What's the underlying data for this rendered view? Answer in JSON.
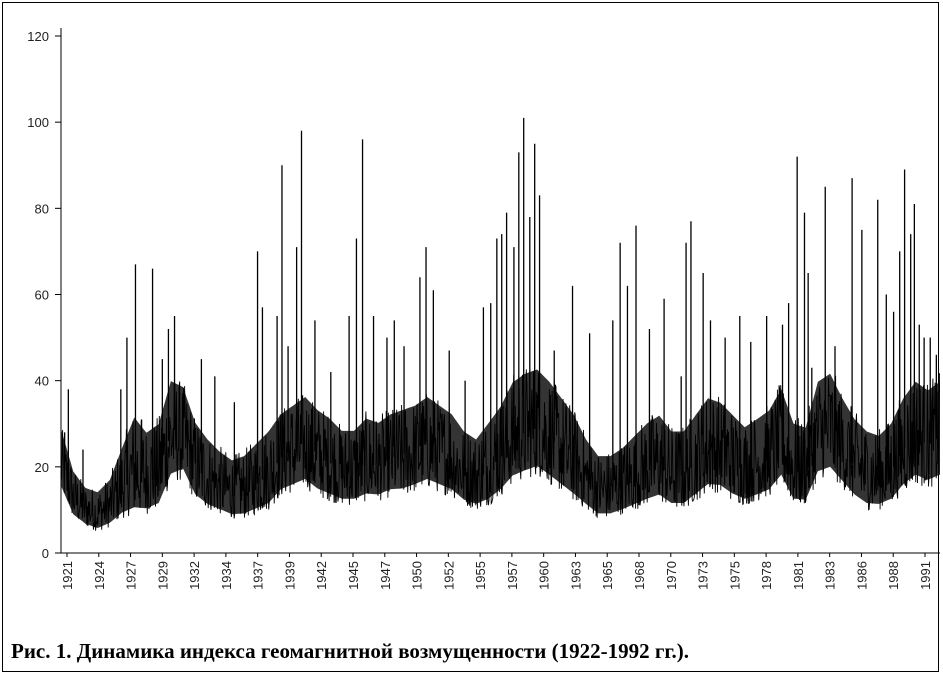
{
  "chart_data": {
    "type": "line",
    "title": "",
    "xlabel": "",
    "ylabel": "",
    "ylim": [
      0,
      120
    ],
    "yticks": [
      0,
      20,
      40,
      60,
      80,
      100,
      120
    ],
    "xlim": [
      1921,
      1993
    ],
    "xtick_labels": [
      "1921",
      "1924",
      "1927",
      "1929",
      "1932",
      "1934",
      "1937",
      "1939",
      "1942",
      "1945",
      "1947",
      "1950",
      "1952",
      "1955",
      "1957",
      "1960",
      "1963",
      "1965",
      "1968",
      "1970",
      "1973",
      "1975",
      "1978",
      "1981",
      "1983",
      "1986",
      "1988",
      "1991"
    ],
    "grid": false,
    "legend": "none",
    "series": [
      {
        "color": "#000000",
        "baseline": {
          "x": [
            1921,
            1922,
            1923,
            1924,
            1925,
            1926,
            1927,
            1928,
            1929,
            1930,
            1931,
            1932,
            1933,
            1934,
            1935,
            1936,
            1937,
            1938,
            1939,
            1940,
            1941,
            1942,
            1943,
            1944,
            1945,
            1946,
            1947,
            1948,
            1949,
            1950,
            1951,
            1952,
            1953,
            1954,
            1955,
            1956,
            1957,
            1958,
            1959,
            1960,
            1961,
            1962,
            1963,
            1964,
            1965,
            1966,
            1967,
            1968,
            1969,
            1970,
            1971,
            1972,
            1973,
            1974,
            1975,
            1976,
            1977,
            1978,
            1979,
            1980,
            1981,
            1982,
            1983,
            1984,
            1985,
            1986,
            1987,
            1988,
            1989,
            1990,
            1991,
            1992,
            1993
          ],
          "y": [
            22,
            13,
            10,
            9,
            11,
            15,
            17,
            16,
            18,
            28,
            30,
            20,
            17,
            15,
            13,
            14,
            16,
            18,
            22,
            24,
            26,
            23,
            21,
            19,
            19,
            21,
            20,
            22,
            23,
            24,
            26,
            24,
            22,
            18,
            17,
            19,
            22,
            26,
            28,
            29,
            27,
            24,
            21,
            17,
            14,
            14,
            15,
            17,
            19,
            20,
            18,
            18,
            21,
            24,
            23,
            21,
            19,
            20,
            22,
            27,
            19,
            18,
            27,
            28,
            24,
            20,
            18,
            17,
            19,
            24,
            27,
            25,
            27
          ],
          "low": [
            14,
            8,
            6,
            5,
            6,
            8,
            9,
            9,
            10,
            16,
            17,
            12,
            10,
            9,
            8,
            8,
            9,
            10,
            13,
            14,
            15,
            13,
            12,
            11,
            11,
            12,
            12,
            13,
            13,
            14,
            15,
            14,
            13,
            11,
            10,
            11,
            13,
            16,
            17,
            18,
            16,
            14,
            12,
            10,
            8,
            8,
            9,
            10,
            11,
            12,
            10,
            10,
            12,
            14,
            14,
            12,
            11,
            12,
            13,
            16,
            11,
            11,
            17,
            18,
            15,
            12,
            10,
            10,
            11,
            14,
            16,
            15,
            16
          ],
          "high": [
            30,
            20,
            16,
            15,
            18,
            26,
            34,
            30,
            32,
            42,
            40,
            32,
            28,
            25,
            23,
            24,
            27,
            30,
            34,
            36,
            38,
            35,
            33,
            30,
            30,
            33,
            32,
            34,
            35,
            36,
            38,
            36,
            34,
            30,
            28,
            32,
            36,
            42,
            44,
            45,
            42,
            38,
            34,
            28,
            24,
            24,
            26,
            29,
            32,
            34,
            30,
            30,
            34,
            38,
            37,
            34,
            31,
            33,
            35,
            40,
            32,
            31,
            42,
            44,
            38,
            33,
            30,
            29,
            32,
            38,
            42,
            40,
            42
          ]
        },
        "peaks": {
          "x": [
            1921.3,
            1921.6,
            1922.8,
            1925.9,
            1926.4,
            1927.1,
            1927.6,
            1928.5,
            1929.3,
            1929.8,
            1930.3,
            1931.6,
            1932.5,
            1933.6,
            1935.2,
            1937.1,
            1937.5,
            1938.7,
            1939.1,
            1939.6,
            1940.3,
            1940.7,
            1941.8,
            1943.1,
            1944.6,
            1945.2,
            1945.7,
            1946.6,
            1947.7,
            1948.3,
            1949.1,
            1950.4,
            1950.9,
            1951.5,
            1952.8,
            1954.1,
            1955.6,
            1956.2,
            1956.7,
            1957.1,
            1957.5,
            1958.1,
            1958.5,
            1958.9,
            1959.4,
            1959.8,
            1960.2,
            1961.4,
            1962.9,
            1964.3,
            1966.2,
            1966.8,
            1967.4,
            1968.1,
            1969.2,
            1970.4,
            1971.8,
            1972.2,
            1972.6,
            1973.6,
            1974.2,
            1975.4,
            1976.6,
            1977.5,
            1978.8,
            1980.1,
            1980.6,
            1981.3,
            1981.9,
            1982.2,
            1982.5,
            1983.6,
            1984.4,
            1985.8,
            1986.6,
            1987.9,
            1988.6,
            1989.2,
            1989.7,
            1990.1,
            1990.6,
            1990.9,
            1991.3,
            1991.7,
            1992.2,
            1992.7
          ],
          "y": [
            28,
            38,
            24,
            38,
            50,
            67,
            31,
            66,
            45,
            52,
            55,
            31,
            45,
            41,
            35,
            70,
            57,
            55,
            90,
            48,
            71,
            98,
            54,
            42,
            55,
            73,
            96,
            55,
            50,
            54,
            48,
            64,
            71,
            61,
            47,
            40,
            57,
            58,
            73,
            74,
            79,
            71,
            93,
            101,
            78,
            95,
            83,
            47,
            62,
            51,
            54,
            72,
            62,
            76,
            52,
            59,
            41,
            72,
            77,
            65,
            54,
            50,
            55,
            49,
            55,
            53,
            58,
            92,
            79,
            65,
            43,
            85,
            48,
            87,
            75,
            82,
            60,
            56,
            70,
            89,
            74,
            81,
            53,
            50,
            50,
            46
          ]
        }
      }
    ]
  },
  "caption": "Рис. 1. Динамика индекса геомагнитной возмущенности (1922-1992 гг.)."
}
